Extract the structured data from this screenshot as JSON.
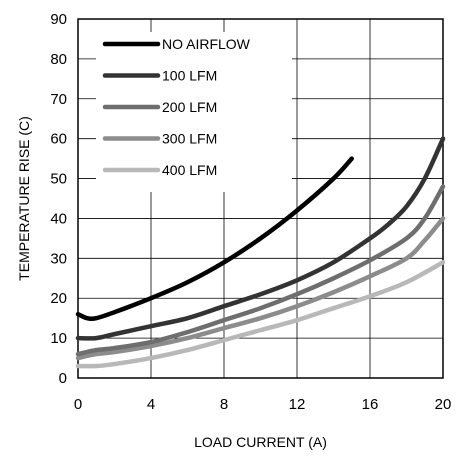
{
  "chart_data": {
    "type": "line",
    "xlabel": "LOAD CURRENT (A)",
    "ylabel": "TEMPERATURE RISE (C)",
    "xlim": [
      0,
      20
    ],
    "ylim": [
      0,
      90
    ],
    "xticks": [
      0,
      4,
      8,
      12,
      16,
      20
    ],
    "yticks": [
      0,
      10,
      20,
      30,
      40,
      50,
      60,
      70,
      80,
      90
    ],
    "xtick_labels": [
      "0",
      "4",
      "8",
      "12",
      "16",
      "20"
    ],
    "ytick_labels": [
      "0",
      "10",
      "20",
      "30",
      "40",
      "50",
      "60",
      "70",
      "80",
      "90"
    ],
    "grid": true,
    "legend_position": "top-left",
    "series": [
      {
        "name": "NO AIRFLOW",
        "color": "#000000",
        "x": [
          0,
          0.5,
          1,
          2,
          4,
          6,
          8,
          10,
          12,
          14,
          15
        ],
        "y": [
          16,
          15,
          15,
          16.5,
          20,
          24,
          29,
          35,
          42,
          50,
          55
        ]
      },
      {
        "name": "100 LFM",
        "color": "#333333",
        "x": [
          0,
          1,
          2,
          4,
          6,
          8,
          10,
          12,
          14,
          16,
          17,
          18,
          19,
          20
        ],
        "y": [
          10,
          10,
          11,
          13,
          15,
          18,
          21,
          24.5,
          29,
          35,
          38.5,
          43,
          50,
          60
        ]
      },
      {
        "name": "200 LFM",
        "color": "#6e6e6e",
        "x": [
          0,
          1,
          2,
          4,
          6,
          8,
          10,
          12,
          14,
          16,
          18,
          19,
          20
        ],
        "y": [
          6,
          7,
          7.5,
          9,
          11.5,
          14.5,
          17.5,
          21,
          25,
          29.5,
          35,
          40,
          48
        ]
      },
      {
        "name": "300 LFM",
        "color": "#8c8c8c",
        "x": [
          0,
          1,
          2,
          4,
          6,
          8,
          10,
          12,
          14,
          16,
          18,
          19,
          20
        ],
        "y": [
          5,
          6,
          6.5,
          8,
          10,
          12.5,
          15,
          18,
          21.5,
          25.5,
          30,
          34.5,
          40
        ]
      },
      {
        "name": "400 LFM",
        "color": "#b8b8b8",
        "x": [
          0,
          1,
          2,
          4,
          6,
          8,
          10,
          12,
          14,
          16,
          18,
          20
        ],
        "y": [
          3,
          3,
          3.5,
          5,
          7,
          9.5,
          12,
          14.5,
          17.5,
          20.5,
          24,
          29
        ]
      }
    ]
  }
}
